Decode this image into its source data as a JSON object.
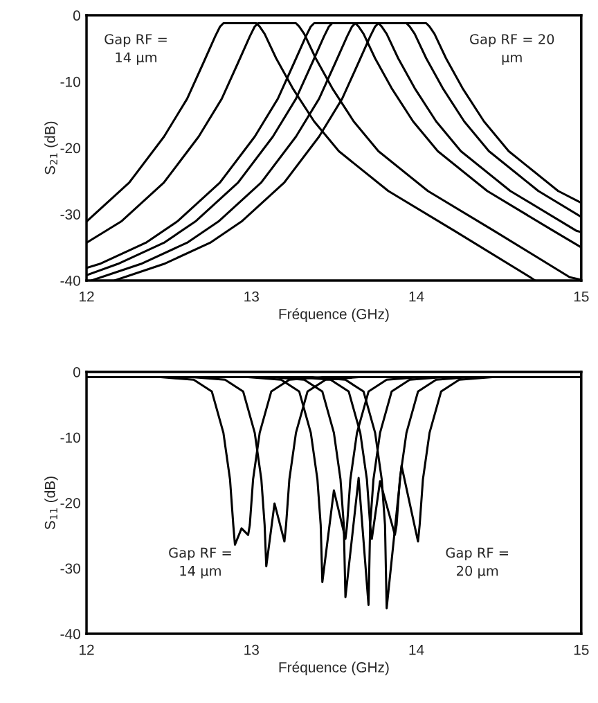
{
  "chart_data": [
    {
      "type": "line",
      "xlabel": "Fréquence (GHz)",
      "ylabel": "S$_{21}$ (dB)",
      "xlim": [
        12,
        15
      ],
      "xticks": [
        12,
        13,
        14,
        15
      ],
      "ylim": [
        -40,
        0
      ],
      "yticks": [
        -40,
        -30,
        -20,
        -10,
        0
      ],
      "grid": false,
      "legend": false,
      "marker": "none",
      "line_style": "solid",
      "annotations": [
        "Gap RF =\n14 µm",
        "Gap RF = 20\nµm"
      ],
      "series": [
        {
          "color": "#000000",
          "x": [
            12.0,
            12.26,
            12.47,
            12.61,
            12.71,
            12.78,
            12.81,
            12.83,
            13.03,
            13.05,
            13.08,
            13.15,
            13.25,
            13.38,
            13.53,
            13.83,
            14.23,
            14.69,
            14.72
          ],
          "values": [
            -31.1,
            -25.2,
            -18.3,
            -12.6,
            -7.1,
            -3.2,
            -1.7,
            -1.2,
            -1.2,
            -1.7,
            -2.8,
            -6.5,
            -11,
            -16,
            -20.5,
            -26.5,
            -32.5,
            -39.5,
            -40
          ]
        },
        {
          "color": "#000000",
          "x": [
            12.0,
            12.21,
            12.47,
            12.68,
            12.82,
            12.92,
            12.99,
            13.02,
            13.04,
            13.27,
            13.29,
            13.32,
            13.39,
            13.49,
            13.62,
            13.77,
            14.07,
            14.47,
            14.93,
            15.0
          ],
          "values": [
            -34.3,
            -31.1,
            -25.2,
            -18.3,
            -12.6,
            -7.1,
            -3.2,
            -1.7,
            -1.2,
            -1.2,
            -1.7,
            -2.8,
            -6.5,
            -11,
            -16,
            -20.5,
            -26.5,
            -32.5,
            -39.5,
            -39.9
          ]
        },
        {
          "color": "#000000",
          "x": [
            12.0,
            12.08,
            12.36,
            12.55,
            12.81,
            13.02,
            13.16,
            13.26,
            13.33,
            13.36,
            13.38,
            13.63,
            13.65,
            13.68,
            13.75,
            13.85,
            13.98,
            14.13,
            14.43,
            14.83,
            15.0
          ],
          "values": [
            -38.1,
            -37.5,
            -34.3,
            -31.1,
            -25.2,
            -18.3,
            -12.6,
            -7.1,
            -3.2,
            -1.7,
            -1.2,
            -1.2,
            -1.7,
            -2.8,
            -6.5,
            -11,
            -16,
            -20.5,
            -26.5,
            -32.5,
            -35.0
          ]
        },
        {
          "color": "#000000",
          "x": [
            12.0,
            12.19,
            12.47,
            12.66,
            12.92,
            13.13,
            13.27,
            13.37,
            13.44,
            13.47,
            13.49,
            13.77,
            13.79,
            13.82,
            13.89,
            13.99,
            14.12,
            14.27,
            14.57,
            14.97,
            15.0
          ],
          "values": [
            -39.2,
            -37.5,
            -34.3,
            -31.1,
            -25.2,
            -18.3,
            -12.6,
            -7.1,
            -3.2,
            -1.7,
            -1.2,
            -1.2,
            -1.7,
            -2.8,
            -6.5,
            -11,
            -16,
            -20.5,
            -26.5,
            -32.5,
            -32.7
          ]
        },
        {
          "color": "#000000",
          "x": [
            12.03,
            12.33,
            12.61,
            12.8,
            13.06,
            13.27,
            13.41,
            13.51,
            13.58,
            13.61,
            13.63,
            13.94,
            13.96,
            13.99,
            14.06,
            14.16,
            14.29,
            14.44,
            14.74,
            15.0
          ],
          "values": [
            -40,
            -37.5,
            -34.3,
            -31.1,
            -25.2,
            -18.3,
            -12.6,
            -7.1,
            -3.2,
            -1.7,
            -1.2,
            -1.2,
            -1.7,
            -2.8,
            -6.5,
            -11,
            -16,
            -20.5,
            -26.5,
            -30.4
          ]
        },
        {
          "color": "#000000",
          "x": [
            12.17,
            12.47,
            12.75,
            12.94,
            13.2,
            13.41,
            13.55,
            13.65,
            13.72,
            13.75,
            13.77,
            14.06,
            14.08,
            14.11,
            14.18,
            14.28,
            14.41,
            14.56,
            14.86,
            15.0
          ],
          "values": [
            -40,
            -37.5,
            -34.3,
            -31.1,
            -25.2,
            -18.3,
            -12.6,
            -7.1,
            -3.2,
            -1.7,
            -1.2,
            -1.2,
            -1.7,
            -2.8,
            -6.5,
            -11,
            -16,
            -20.5,
            -26.5,
            -28.3
          ]
        }
      ]
    },
    {
      "type": "line",
      "xlabel": "Fréquence (GHz)",
      "ylabel": "S$_{11}$ (dB)",
      "xlim": [
        12,
        15
      ],
      "xticks": [
        12,
        13,
        14,
        15
      ],
      "ylim": [
        -40,
        0
      ],
      "yticks": [
        -40,
        -30,
        -20,
        -10,
        0
      ],
      "grid": false,
      "legend": false,
      "marker": "none",
      "line_style": "solid",
      "annotations": [
        "Gap RF =\n14 µm",
        "Gap RF =\n20 µm"
      ],
      "series": [
        {
          "color": "#000000",
          "x": [
            12.0,
            12.45,
            12.65,
            12.76,
            12.83,
            12.87,
            12.89,
            12.9,
            12.94,
            12.98,
            12.99,
            13.01,
            13.05,
            13.12,
            13.23,
            13.43,
            15.0
          ],
          "values": [
            -0.8,
            -0.8,
            -1.2,
            -3,
            -9.3,
            -16.4,
            -23.4,
            -26.4,
            -23.9,
            -24.9,
            -23.4,
            -16.4,
            -9.3,
            -3,
            -1.2,
            -0.8,
            -0.8
          ]
        },
        {
          "color": "#000000",
          "x": [
            12.0,
            12.64,
            12.84,
            12.95,
            13.02,
            13.06,
            13.08,
            13.09,
            13.14,
            13.2,
            13.21,
            13.23,
            13.27,
            13.34,
            13.45,
            13.65,
            15.0
          ],
          "values": [
            -0.8,
            -0.8,
            -1.2,
            -3,
            -9.3,
            -16.4,
            -23.4,
            -29.7,
            -20.1,
            -25.9,
            -23.4,
            -16.4,
            -9.3,
            -3,
            -1.2,
            -0.8,
            -0.8
          ]
        },
        {
          "color": "#000000",
          "x": [
            12.0,
            12.98,
            13.18,
            13.29,
            13.36,
            13.4,
            13.42,
            13.43,
            13.5,
            13.57,
            13.58,
            13.6,
            13.64,
            13.71,
            13.82,
            14.02,
            15.0
          ],
          "values": [
            -0.8,
            -0.8,
            -1.2,
            -3,
            -9.3,
            -16.4,
            -23.4,
            -32.1,
            -18.1,
            -25.5,
            -23.4,
            -16.4,
            -9.3,
            -3,
            -1.2,
            -0.8,
            -0.8
          ]
        },
        {
          "color": "#000000",
          "x": [
            12.0,
            13.12,
            13.32,
            13.43,
            13.5,
            13.54,
            13.56,
            13.57,
            13.65,
            13.71,
            13.72,
            13.74,
            13.78,
            13.85,
            13.96,
            14.16,
            15.0
          ],
          "values": [
            -0.8,
            -0.8,
            -1.2,
            -3,
            -9.3,
            -16.4,
            -23.4,
            -34.4,
            -16.2,
            -35.6,
            -23.4,
            -16.4,
            -9.3,
            -3,
            -1.2,
            -0.8,
            -0.8
          ]
        },
        {
          "color": "#000000",
          "x": [
            12.0,
            13.28,
            13.48,
            13.59,
            13.66,
            13.7,
            13.72,
            13.73,
            13.78,
            13.87,
            13.88,
            13.9,
            13.94,
            14.01,
            14.12,
            14.32,
            15.0
          ],
          "values": [
            -0.8,
            -0.8,
            -1.2,
            -3,
            -9.3,
            -16.4,
            -23.4,
            -25.5,
            -16.7,
            -24.9,
            -23.4,
            -16.4,
            -9.3,
            -3,
            -1.2,
            -0.8,
            -0.8
          ]
        },
        {
          "color": "#000000",
          "x": [
            12.0,
            13.37,
            13.57,
            13.68,
            13.75,
            13.79,
            13.81,
            13.82,
            13.91,
            14.01,
            14.02,
            14.04,
            14.08,
            14.15,
            14.26,
            14.46,
            15.0
          ],
          "values": [
            -0.8,
            -0.8,
            -1.2,
            -3,
            -9.3,
            -16.4,
            -23.4,
            -36.1,
            -14.3,
            -25.9,
            -23.4,
            -16.4,
            -9.3,
            -3,
            -1.2,
            -0.8,
            -0.8
          ]
        }
      ]
    }
  ]
}
